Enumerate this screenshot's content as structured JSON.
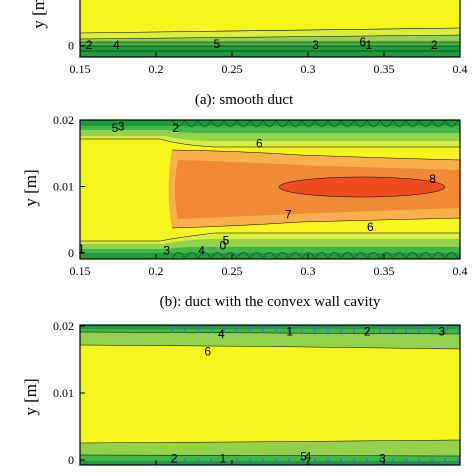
{
  "palette": {
    "outer_green": "#1f9a3c",
    "mid_green": "#43b649",
    "light_green": "#93d14e",
    "yellow_green": "#d9ee3e",
    "yellow": "#f6f51e",
    "light_orange": "#f7b04c",
    "orange": "#f08a34",
    "red_orange": "#ee4b1f",
    "axis": "#000000"
  },
  "chart_data": [
    {
      "panel": "a",
      "type": "contour",
      "caption": "(a): smooth duct",
      "xlabel": "",
      "ylabel": "y [m]",
      "xlim": [
        0.15,
        0.4
      ],
      "x_ticks": [
        "0.15",
        "0.2",
        "0.25",
        "0.3",
        "0.35",
        "0.4"
      ],
      "y_ticks": [
        "0"
      ],
      "wall_shape": "smooth",
      "contour_labels": [
        {
          "text": "6",
          "x": 0.336,
          "y": 0.0015
        },
        {
          "text": "5",
          "x": 0.24,
          "y": 0.0007
        },
        {
          "text": "2",
          "x": 0.156,
          "y": 0.0002
        },
        {
          "text": "4",
          "x": 0.174,
          "y": 0.0003
        },
        {
          "text": "3",
          "x": 0.305,
          "y": 0.0002
        },
        {
          "text": "1",
          "x": 0.34,
          "y": 0.0002
        },
        {
          "text": "2",
          "x": 0.383,
          "y": 0.0002
        }
      ]
    },
    {
      "panel": "b",
      "type": "contour",
      "caption": "(b): duct with the convex wall cavity",
      "xlabel": "",
      "ylabel": "y [m]",
      "xlim": [
        0.15,
        0.4
      ],
      "ylim": [
        0,
        0.02
      ],
      "x_ticks": [
        "0.15",
        "0.2",
        "0.25",
        "0.3",
        "0.35",
        "0.4"
      ],
      "y_ticks": [
        "0",
        "0.01",
        "0.02"
      ],
      "wall_shape": "convex cavities",
      "contour_labels": [
        {
          "text": "5",
          "x": 0.173,
          "y": 0.0188
        },
        {
          "text": "3",
          "x": 0.177,
          "y": 0.019
        },
        {
          "text": "2",
          "x": 0.213,
          "y": 0.0188
        },
        {
          "text": "6",
          "x": 0.268,
          "y": 0.0165
        },
        {
          "text": "8",
          "x": 0.382,
          "y": 0.0111
        },
        {
          "text": "7",
          "x": 0.287,
          "y": 0.0058
        },
        {
          "text": "6",
          "x": 0.341,
          "y": 0.0039
        },
        {
          "text": "5",
          "x": 0.246,
          "y": 0.0019
        },
        {
          "text": "1",
          "x": 0.151,
          "y": 0.0006
        },
        {
          "text": "3",
          "x": 0.207,
          "y": 0.0004
        },
        {
          "text": "4",
          "x": 0.23,
          "y": 0.0004
        },
        {
          "text": "0",
          "x": 0.244,
          "y": 0.0011
        }
      ]
    },
    {
      "panel": "c",
      "type": "contour",
      "caption": "",
      "xlabel": "",
      "ylabel": "y [m]",
      "xlim": [
        0.15,
        0.4
      ],
      "ylim": [
        0,
        0.02
      ],
      "x_ticks": [],
      "y_ticks": [
        "0",
        "0.01",
        "0.02"
      ],
      "wall_shape": "ribbed",
      "contour_labels": [
        {
          "text": "4",
          "x": 0.243,
          "y": 0.0188
        },
        {
          "text": "1",
          "x": 0.288,
          "y": 0.0192
        },
        {
          "text": "2",
          "x": 0.339,
          "y": 0.0192
        },
        {
          "text": "3",
          "x": 0.388,
          "y": 0.0192
        },
        {
          "text": "6",
          "x": 0.234,
          "y": 0.0162
        },
        {
          "text": "5",
          "x": 0.297,
          "y": 0.0005
        },
        {
          "text": "4",
          "x": 0.3,
          "y": 0.0005
        },
        {
          "text": "2",
          "x": 0.212,
          "y": 0.0002
        },
        {
          "text": "1",
          "x": 0.244,
          "y": 0.0002
        },
        {
          "text": "3",
          "x": 0.349,
          "y": 0.0002
        }
      ]
    }
  ]
}
